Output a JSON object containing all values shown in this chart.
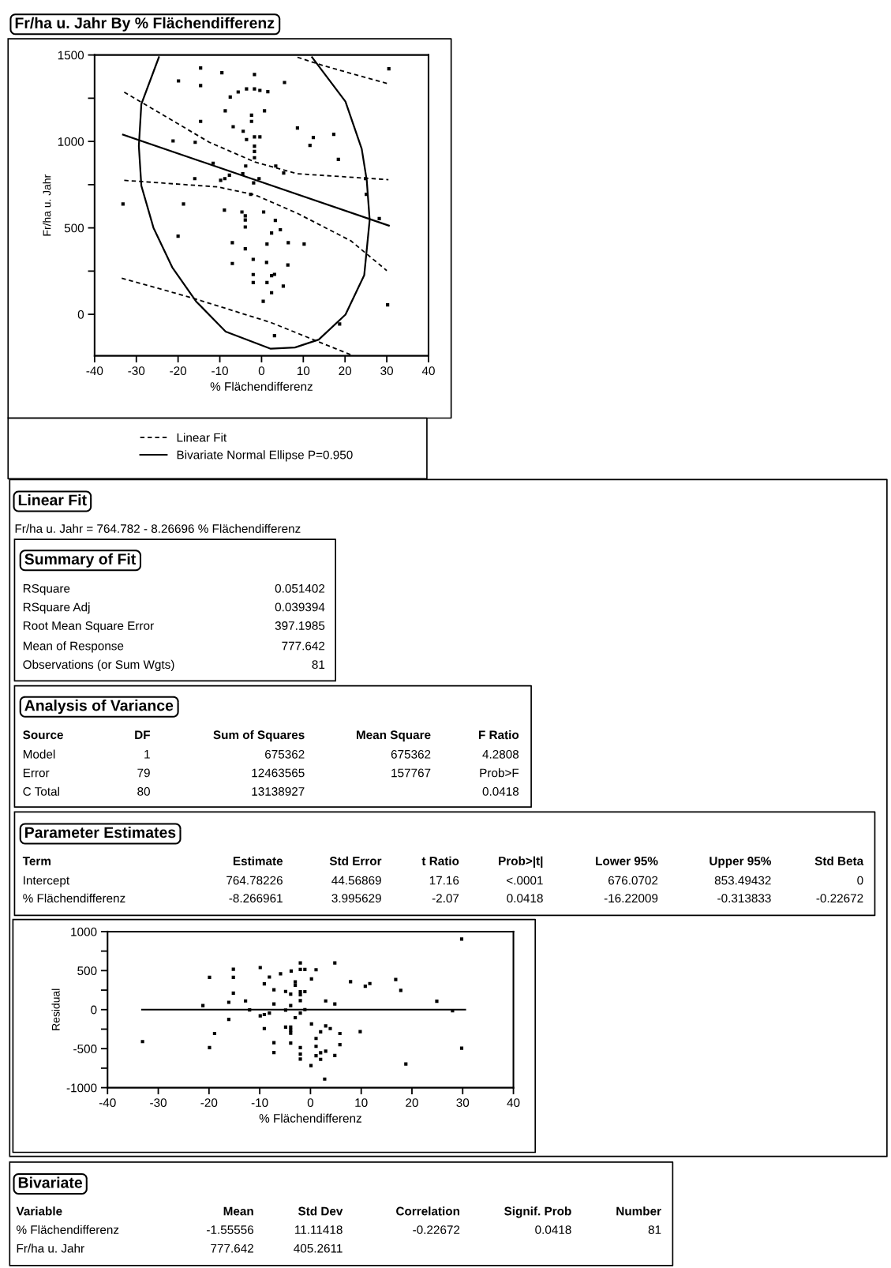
{
  "chart_data": [
    {
      "type": "scatter",
      "title": "Fr/ha u. Jahr By % Flächendifferenz",
      "xlabel": "% Flächendifferenz",
      "ylabel": "Fr/ha u. Jahr",
      "xlim": [
        -40,
        40
      ],
      "xticks": [
        -40,
        -30,
        -20,
        -10,
        0,
        10,
        20,
        30,
        40
      ],
      "ylim": [
        -240,
        1500
      ],
      "yticks": [
        0,
        {
          "value": 250,
          "label": null
        },
        500,
        {
          "value": 750,
          "label": null
        },
        1000,
        {
          "value": 1250,
          "label": null
        },
        1500
      ],
      "legend": "bottom",
      "grid": false,
      "series": [
        {
          "type": "scatter",
          "marker": "square",
          "color": "#000000",
          "x": [
            -14.6,
            -9.5,
            -1.7,
            30.5,
            -19.9,
            -14.6,
            5.5,
            -3.6,
            -1.7,
            -0.4,
            1.5,
            -5.6,
            -7.5,
            -8.7,
            0.7,
            -2.4,
            -2.4,
            -14.6,
            -6.8,
            8.6,
            -4.4,
            17.3,
            12.4,
            -1.7,
            -0.4,
            -3.6,
            -21.2,
            -15.9,
            11.6,
            -1.7,
            -1.7,
            18.4,
            -1.7,
            -11.6,
            -3.8,
            3.4,
            5.3,
            -7.7,
            -4.5,
            -16.0,
            -9.8,
            -8.8,
            -0.6,
            -1.9,
            24.9,
            -2.6,
            25.1,
            -33.2,
            -18.7,
            -8.9,
            -4.7,
            0.5,
            -3.9,
            3.3,
            -3.9,
            4.5,
            2.4,
            28.2,
            -20.0,
            -7.0,
            1.3,
            6.4,
            10.2,
            -3.9,
            -2.0,
            1.2,
            -7.0,
            6.3,
            -2.0,
            3.1,
            2.4,
            -2.0,
            1.3,
            5.2,
            2.4,
            0.4,
            30.2,
            18.7,
            3.1,
            -3.9
          ],
          "values": [
            1425,
            1397,
            1387,
            1420,
            1350,
            1323,
            1341,
            1304,
            1304,
            1295,
            1288,
            1286,
            1257,
            1177,
            1177,
            1152,
            1116,
            1116,
            1085,
            1078,
            1059,
            1041,
            1023,
            1026,
            1026,
            1011,
            1003,
            995,
            977,
            973,
            942,
            896,
            906,
            874,
            858,
            858,
            817,
            805,
            813,
            785,
            775,
            785,
            785,
            760,
            785,
            694,
            694,
            638,
            638,
            603,
            592,
            592,
            546,
            543,
            505,
            489,
            470,
            554,
            452,
            414,
            406,
            414,
            406,
            379,
            318,
            300,
            294,
            285,
            230,
            231,
            224,
            184,
            184,
            163,
            125,
            75,
            55,
            -56,
            -123,
            570
          ]
        },
        {
          "type": "line",
          "color": "#000000",
          "line_style": "solid",
          "x": [
            -33.2,
            30.5
          ],
          "values": [
            1039,
            513
          ]
        },
        {
          "type": "line",
          "name": "Linear Fit",
          "color": "#000000",
          "line_style": "dashed",
          "x": [
            -32.9,
            -12.5,
            -1.6,
            8.6,
            30.4
          ],
          "values": [
            1285,
            995,
            881,
            813,
            779
          ]
        },
        {
          "type": "line",
          "color": "#000000",
          "line_style": "dashed",
          "x": [
            -32.9,
            -10.5,
            -1.6,
            8.6,
            21.4,
            30.0
          ],
          "values": [
            775,
            737,
            691,
            584,
            425,
            253
          ]
        },
        {
          "type": "line",
          "color": "#000000",
          "line_style": "dashed",
          "x": [
            8.6,
            15.0,
            30.4
          ],
          "values": [
            1487,
            1437,
            1333
          ]
        },
        {
          "type": "line",
          "color": "#000000",
          "line_style": "dashed",
          "x": [
            -33.5,
            -16.9,
            2.2,
            21.4
          ],
          "values": [
            209,
            97,
            -47,
            -234
          ]
        },
        {
          "type": "line",
          "name": "Bivariate Normal Ellipse P=0.950",
          "color": "#000000",
          "line_style": "solid",
          "x": [
            -24.6,
            -28.8,
            -29.4,
            -28.8,
            -25.9,
            -21.4,
            -15.7,
            -8.6,
            2.2,
            8.0,
            13.7,
            20.1,
            24.6,
            25.9,
            25.2,
            24.0,
            20.1,
            12.1
          ],
          "values": [
            1487,
            1216,
            973,
            744,
            501,
            272,
            75,
            -100,
            -199,
            -192,
            -146,
            -2,
            227,
            546,
            775,
            957,
            1231,
            1487
          ]
        }
      ]
    },
    {
      "type": "other",
      "title": "Linear Fit",
      "annotations": [
        "Fr/ha u. Jahr = 764.782 - 8.26696 % Flächendifferenz"
      ]
    },
    {
      "type": "other",
      "title": "Summary of Fit",
      "categories": [
        null,
        null
      ],
      "annotations": [
        "RSquare",
        "0.051402",
        "RSquare Adj",
        "0.039394",
        "Root Mean Square Error",
        "397.1985",
        "Mean of Response",
        "777.642",
        "Observations (or Sum Wgts)",
        "81"
      ]
    },
    {
      "type": "other",
      "title": "Analysis of Variance",
      "categories": [
        "Source",
        "DF",
        "Sum of Squares",
        "Mean Square",
        "F Ratio"
      ],
      "annotations": [
        "Model",
        "1",
        "675362",
        "675362",
        "4.2808",
        "Error",
        "79",
        "12463565",
        "157767",
        "Prob>F",
        "C Total",
        "80",
        "13138927",
        null,
        "0.0418"
      ]
    },
    {
      "type": "other",
      "title": "Parameter Estimates",
      "categories": [
        "Term",
        "Estimate",
        "Std Error",
        "t Ratio",
        "Prob>|t|",
        "Lower 95%",
        "Upper 95%",
        "Std Beta"
      ],
      "annotations": [
        "Intercept",
        "764.78226",
        "44.56869",
        "17.16",
        "<.0001",
        "676.0702",
        "853.49432",
        "0",
        "% Flächendifferenz",
        "-8.266961",
        "3.995629",
        "-2.07",
        "0.0418",
        "-16.22009",
        "-0.313833",
        "-0.22672"
      ]
    },
    {
      "type": "scatter",
      "xlabel": "% Flächendifferenz",
      "ylabel": "Residual",
      "xlim": [
        -40,
        40
      ],
      "xticks": [
        -40,
        -30,
        -20,
        -10,
        0,
        10,
        20,
        30,
        40
      ],
      "ylim": [
        -1000,
        1000
      ],
      "yticks": [
        -1000,
        {
          "value": -750,
          "label": null
        },
        -500,
        {
          "value": -250,
          "label": null
        },
        0,
        {
          "value": 250,
          "label": null
        },
        500,
        {
          "value": 750,
          "label": null
        },
        1000
      ],
      "grid": false,
      "series": [
        {
          "type": "scatter",
          "marker": "square",
          "color": "#000000",
          "x": [
            29.8,
            -2.0,
            4.8,
            -15.2,
            -9.9,
            -3.8,
            -2.0,
            -1.1,
            1.1,
            -19.9,
            -15.2,
            -8.1,
            -5.9,
            0.2,
            7.9,
            16.8,
            -9.1,
            -3.0,
            -3.0,
            10.8,
            11.7,
            -7.2,
            -4.9,
            -3.9,
            -2.0,
            -1.1,
            -2.0,
            17.8,
            -15.2,
            -12.8,
            -16.1,
            -7.2,
            -3.9,
            -2.0,
            3.0,
            4.8,
            24.9,
            -21.2,
            -12.0,
            -4.9,
            -1.1,
            -2.0,
            28.0,
            -9.9,
            -9.1,
            -8.1,
            -3.0,
            -16.1,
            0.2,
            3.0,
            3.9,
            -4.9,
            -3.9,
            -3.9,
            -3.9,
            -9.1,
            2.0,
            5.8,
            9.8,
            -18.9,
            -33.1,
            1.1,
            -7.2,
            -3.9,
            5.8,
            -19.9,
            -2.0,
            1.1,
            29.8,
            -7.2,
            -2.0,
            2.0,
            3.0,
            1.1,
            4.8,
            -2.0,
            2.0,
            0.1,
            18.8,
            2.8
          ],
          "values": [
            904,
            598,
            598,
            518,
            539,
            494,
            515,
            515,
            511,
            414,
            414,
            417,
            459,
            393,
            358,
            386,
            330,
            355,
            313,
            299,
            334,
            254,
            233,
            198,
            230,
            230,
            191,
            247,
            212,
            111,
            94,
            73,
            52,
            115,
            111,
            73,
            108,
            52,
            -3,
            -7,
            0,
            -45,
            -14,
            -80,
            -63,
            -45,
            -104,
            -125,
            -184,
            -209,
            -243,
            -223,
            -223,
            -264,
            -303,
            -243,
            -285,
            -306,
            -282,
            -306,
            -410,
            -369,
            -424,
            -428,
            -449,
            -487,
            -487,
            -470,
            -494,
            -550,
            -570,
            -553,
            -532,
            -591,
            -588,
            -633,
            -637,
            -717,
            -696,
            -890
          ]
        },
        {
          "type": "line",
          "color": "#000000",
          "line_style": "solid",
          "x": [
            -33.2,
            30.5
          ],
          "values": [
            0,
            0
          ]
        }
      ]
    },
    {
      "type": "other",
      "title": "Bivariate",
      "categories": [
        "Variable",
        "Mean",
        "Std Dev",
        "Correlation",
        "Signif. Prob",
        "Number"
      ],
      "annotations": [
        "% Flächendifferenz",
        "-1.55556",
        "11.11418",
        "-0.22672",
        "0.0418",
        "81",
        "Fr/ha u. Jahr",
        "777.642",
        "405.2611"
      ]
    }
  ]
}
